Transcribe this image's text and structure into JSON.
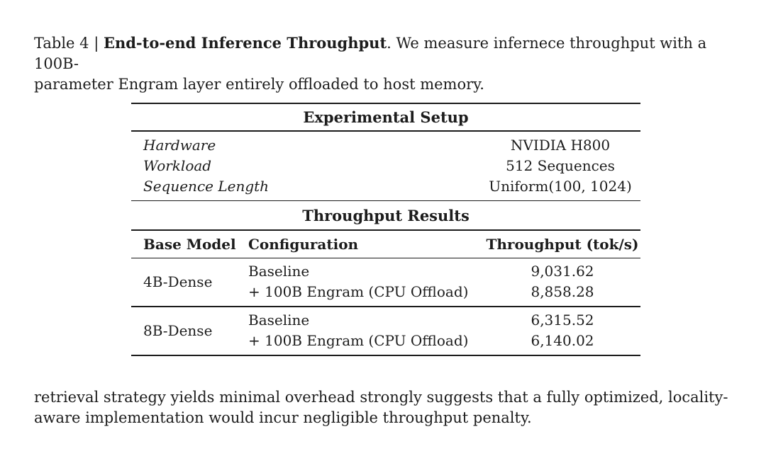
{
  "caption": {
    "line1_prefix": "Table 4 | ",
    "line1_title": "End-to-end Inference Throughput",
    "line1_rest": ". We measure infernece throughput with a 100B-",
    "line2": "parameter Engram layer entirely offloaded to host memory."
  },
  "table": {
    "setup_header": "Experimental Setup",
    "setup_rows": [
      {
        "label": "Hardware",
        "value": "NVIDIA H800"
      },
      {
        "label": "Workload",
        "value": "512 Sequences"
      },
      {
        "label": "Sequence Length",
        "value": "Uniform(100, 1024)"
      }
    ],
    "results_header": "Throughput Results",
    "columns": {
      "model": "Base Model",
      "config": "Configuration",
      "throughput": "Throughput (tok/s)"
    },
    "groups": [
      {
        "model": "4B-Dense",
        "rows": [
          {
            "config": "Baseline",
            "value": "9,031.62"
          },
          {
            "config": "+ 100B Engram (CPU Offload)",
            "value": "8,858.28"
          }
        ]
      },
      {
        "model": "8B-Dense",
        "rows": [
          {
            "config": "Baseline",
            "value": "6,315.52"
          },
          {
            "config": "+ 100B Engram (CPU Offload)",
            "value": "6,140.02"
          }
        ]
      }
    ]
  },
  "footer": {
    "line1": "retrieval strategy yields minimal overhead strongly suggests that a fully optimized, locality-",
    "line2": "aware implementation would incur negligible throughput penalty."
  }
}
